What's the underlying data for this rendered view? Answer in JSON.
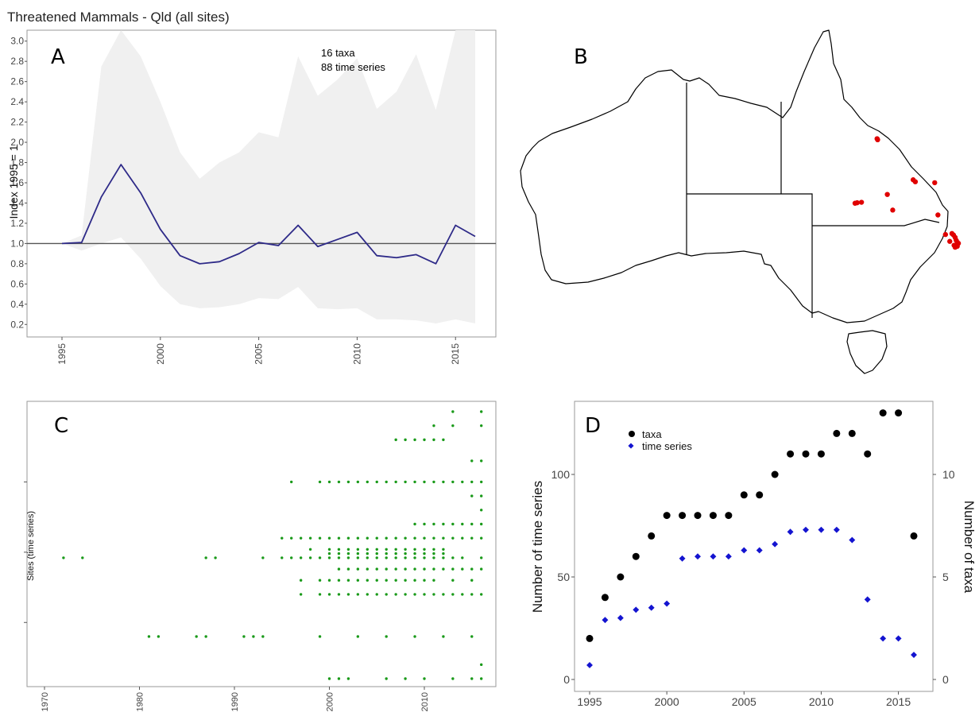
{
  "chart_data": [
    {
      "type": "line",
      "panel": "A",
      "title": "Threatened Mammals - Qld (all sites)",
      "ylabel": "Index 1995  = 1",
      "xlabel": "",
      "xlim": [
        1994,
        2017
      ],
      "ylim": [
        0.1,
        3.1
      ],
      "x_ticks": [
        1995,
        2000,
        2005,
        2010,
        2015
      ],
      "y_ticks": [
        0.2,
        0.4,
        0.6,
        0.8,
        1.0,
        1.2,
        1.4,
        1.6,
        1.8,
        2.0,
        2.2,
        2.4,
        2.6,
        2.8,
        3.0
      ],
      "reference_line": 1.0,
      "annotations": [
        "16 taxa",
        "88 time series"
      ],
      "x": [
        1995,
        1996,
        1997,
        1998,
        1999,
        2000,
        2001,
        2002,
        2003,
        2004,
        2005,
        2006,
        2007,
        2008,
        2009,
        2010,
        2011,
        2012,
        2013,
        2014,
        2015,
        2016
      ],
      "series": [
        {
          "values": [
            1.0,
            1.01,
            1.46,
            1.78,
            1.5,
            1.14,
            0.88,
            0.8,
            0.82,
            0.9,
            1.01,
            0.98,
            1.18,
            0.97,
            1.04,
            1.11,
            0.88,
            0.86,
            0.89,
            0.8,
            1.18,
            1.07
          ],
          "lower": [
            1.0,
            0.93,
            1.0,
            1.06,
            0.85,
            0.58,
            0.4,
            0.36,
            0.37,
            0.4,
            0.46,
            0.45,
            0.57,
            0.36,
            0.35,
            0.36,
            0.25,
            0.25,
            0.24,
            0.21,
            0.25,
            0.21
          ],
          "upper": [
            1.0,
            1.08,
            2.75,
            3.2,
            2.85,
            2.4,
            1.9,
            1.64,
            1.8,
            1.9,
            2.1,
            2.05,
            2.85,
            2.46,
            2.62,
            2.83,
            2.33,
            2.5,
            2.87,
            2.32,
            3.2,
            3.2
          ]
        }
      ],
      "colors": {
        "line": "#2e2a88",
        "band": "#f0f0f0",
        "reference": "#555555"
      }
    },
    {
      "type": "map",
      "panel": "B",
      "colors": {
        "points": "#e00000",
        "outline": "#000000"
      },
      "site_points": [
        [
          145.75,
          -16.9
        ],
        [
          145.8,
          -17.0
        ],
        [
          149.1,
          -21.1
        ],
        [
          149.3,
          -21.3
        ],
        [
          151.1,
          -21.4
        ],
        [
          143.7,
          -23.5
        ],
        [
          143.9,
          -23.45
        ],
        [
          144.3,
          -23.4
        ],
        [
          146.7,
          -22.6
        ],
        [
          147.2,
          -24.2
        ],
        [
          151.4,
          -24.7
        ],
        [
          152.1,
          -26.7
        ],
        [
          152.7,
          -26.6
        ],
        [
          152.85,
          -26.75
        ],
        [
          153.0,
          -27.0
        ],
        [
          153.1,
          -27.3
        ],
        [
          153.2,
          -27.5
        ],
        [
          152.5,
          -27.4
        ],
        [
          153.3,
          -27.6
        ],
        [
          152.9,
          -27.8
        ],
        [
          153.2,
          -27.9
        ],
        [
          153.0,
          -28.0
        ]
      ]
    },
    {
      "type": "scatter",
      "panel": "C",
      "xlabel": "",
      "ylabel": "Sites (time series)",
      "xlim": [
        1970,
        2017
      ],
      "ylim": [
        0,
        20.5
      ],
      "x_ticks": [
        1970,
        1980,
        1990,
        2000,
        2010
      ],
      "y_ticks": [
        5,
        10,
        15
      ],
      "colors": {
        "points": "#1a9a1a"
      },
      "rows": [
        {
          "y": 20,
          "x": [
            2013,
            2016
          ]
        },
        {
          "y": 19,
          "x": [
            2011,
            2013,
            2016
          ]
        },
        {
          "y": 18,
          "x": [
            2007,
            2008,
            2009,
            2010,
            2011,
            2012
          ]
        },
        {
          "y": 16.5,
          "x": [
            2015,
            2016
          ]
        },
        {
          "y": 15,
          "x": [
            1996,
            1999,
            2000,
            2001,
            2002,
            2003,
            2004,
            2005,
            2006,
            2007,
            2008,
            2009,
            2010,
            2011,
            2012,
            2013,
            2014,
            2015,
            2016
          ]
        },
        {
          "y": 14,
          "x": [
            2015,
            2016,
            2017
          ]
        },
        {
          "y": 13,
          "x": [
            2016,
            2017
          ]
        },
        {
          "y": 12,
          "x": [
            2009,
            2010,
            2011,
            2012,
            2013,
            2014,
            2015,
            2016
          ]
        },
        {
          "y": 11,
          "x": [
            1995,
            1996,
            1997,
            1998,
            1999,
            2000,
            2001,
            2002,
            2003,
            2004,
            2005,
            2006,
            2007,
            2008,
            2009,
            2010,
            2011,
            2012,
            2013,
            2014,
            2015,
            2016
          ]
        },
        {
          "y": 10.2,
          "x": [
            1998,
            2000,
            2001,
            2002,
            2003,
            2004,
            2005,
            2006,
            2007,
            2008,
            2009,
            2010,
            2011,
            2012
          ]
        },
        {
          "y": 9.9,
          "x": [
            2000,
            2001,
            2002,
            2003,
            2004,
            2005,
            2006,
            2007,
            2008,
            2009,
            2010,
            2011,
            2012
          ]
        },
        {
          "y": 9.6,
          "x": [
            1972,
            1974,
            1987,
            1988,
            1993,
            1995,
            1996,
            1997,
            1998,
            1999,
            2000,
            2001,
            2002,
            2003,
            2004,
            2005,
            2006,
            2007,
            2008,
            2009,
            2010,
            2011,
            2012,
            2013,
            2014,
            2016
          ]
        },
        {
          "y": 8.8,
          "x": [
            2001,
            2002,
            2003,
            2004,
            2005,
            2006,
            2007,
            2008,
            2009,
            2010,
            2011,
            2012,
            2013,
            2014,
            2015,
            2016
          ]
        },
        {
          "y": 8,
          "x": [
            1997,
            1999,
            2000,
            2001,
            2002,
            2003,
            2004,
            2005,
            2006,
            2007,
            2008,
            2009,
            2010,
            2011,
            2013,
            2015
          ]
        },
        {
          "y": 7,
          "x": [
            1997,
            1999,
            2000,
            2001,
            2002,
            2003,
            2004,
            2005,
            2006,
            2007,
            2008,
            2009,
            2010,
            2011,
            2012,
            2013,
            2014,
            2015,
            2016
          ]
        },
        {
          "y": 4,
          "x": [
            1981,
            1982,
            1986,
            1987,
            1991,
            1992,
            1993,
            1999,
            2003,
            2006,
            2009,
            2012,
            2015
          ]
        },
        {
          "y": 2,
          "x": [
            2016,
            2017
          ]
        },
        {
          "y": 1,
          "x": [
            2000,
            2001,
            2002,
            2006,
            2008,
            2010,
            2013,
            2015,
            2016
          ]
        }
      ]
    },
    {
      "type": "scatter",
      "panel": "D",
      "xlabel": "",
      "ylabel": "Number of time series",
      "ylabel_right": "Number of taxa",
      "xlim": [
        1994.4,
        2017.1
      ],
      "ylim": [
        -5,
        138
      ],
      "ylim_right": [
        -0.5,
        13.8
      ],
      "x_ticks": [
        1995,
        2000,
        2005,
        2010,
        2015
      ],
      "y_ticks": [
        0,
        50,
        100
      ],
      "y_ticks_right": [
        0,
        5,
        10
      ],
      "legend": {
        "placement": "top-left",
        "entries": [
          "taxa",
          "time series"
        ]
      },
      "x": [
        1995,
        1996,
        1997,
        1998,
        1999,
        2000,
        2001,
        2002,
        2003,
        2004,
        2005,
        2006,
        2007,
        2008,
        2009,
        2010,
        2011,
        2012,
        2013,
        2014,
        2015,
        2016
      ],
      "series": [
        {
          "name": "taxa",
          "values": [
            20,
            40,
            50,
            60,
            70,
            80,
            80,
            80,
            80,
            80,
            90,
            90,
            100,
            110,
            110,
            110,
            120,
            120,
            110,
            130,
            130,
            70
          ],
          "color": "#000000",
          "marker": "circle"
        },
        {
          "name": "time series",
          "values": [
            7,
            29,
            30,
            34,
            35,
            37,
            59,
            60,
            60,
            60,
            63,
            63,
            66,
            72,
            73,
            73,
            73,
            68,
            39,
            20,
            20,
            12
          ],
          "color": "#1414d0",
          "marker": "diamond"
        }
      ]
    }
  ]
}
